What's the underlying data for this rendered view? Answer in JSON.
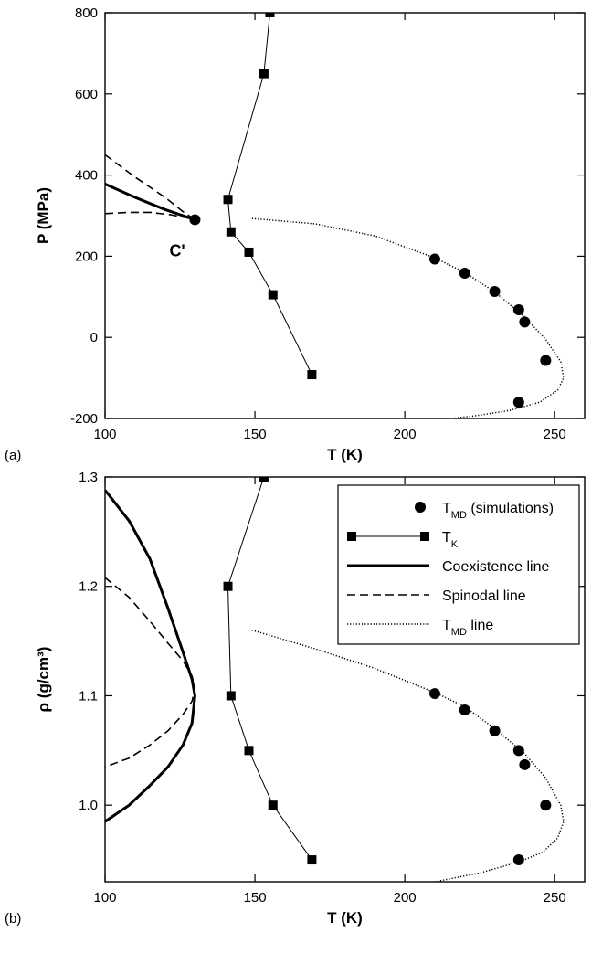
{
  "chart_data": [
    {
      "type": "line",
      "panel_label": "(a)",
      "xlabel": "T (K)",
      "ylabel": "P (MPa)",
      "xlim": [
        100,
        260
      ],
      "ylim": [
        -200,
        800
      ],
      "xticks": [
        100,
        150,
        200,
        250
      ],
      "yticks": [
        -200,
        0,
        200,
        400,
        600,
        800
      ],
      "annotation": {
        "text": "C'",
        "x": 130,
        "y": 290
      },
      "series": [
        {
          "name": "TK",
          "style": "line-square",
          "points": [
            [
              155,
              800
            ],
            [
              153,
              650
            ],
            [
              141,
              340
            ],
            [
              142,
              260
            ],
            [
              148,
              210
            ],
            [
              156,
              105
            ],
            [
              169,
              -92
            ]
          ]
        },
        {
          "name": "TMD (simulations)",
          "style": "marker-circle",
          "points": [
            [
              130,
              290
            ],
            [
              210,
              193
            ],
            [
              220,
              158
            ],
            [
              230,
              113
            ],
            [
              238,
              68
            ],
            [
              240,
              38
            ],
            [
              247,
              -57
            ],
            [
              238,
              -160
            ]
          ]
        },
        {
          "name": "Coexistence line",
          "style": "solid-thick",
          "points": [
            [
              100,
              378
            ],
            [
              110,
              345
            ],
            [
              120,
              315
            ],
            [
              126,
              300
            ],
            [
              130,
              290
            ]
          ]
        },
        {
          "name": "Spinodal line",
          "style": "dashed",
          "points": [
            [
              100,
              450
            ],
            [
              110,
              395
            ],
            [
              120,
              345
            ],
            [
              126,
              310
            ],
            [
              130,
              290
            ]
          ]
        },
        {
          "name": "Spinodal line (lower branch)",
          "style": "dashed",
          "points": [
            [
              100,
              305
            ],
            [
              108,
              308
            ],
            [
              115,
              308
            ],
            [
              122,
              302
            ],
            [
              127,
              295
            ],
            [
              130,
              290
            ]
          ]
        },
        {
          "name": "TMD line",
          "style": "dotted",
          "points": [
            [
              149,
              293
            ],
            [
              170,
              280
            ],
            [
              190,
              250
            ],
            [
              210,
              196
            ],
            [
              220,
              160
            ],
            [
              230,
              112
            ],
            [
              240,
              50
            ],
            [
              247,
              -5
            ],
            [
              252,
              -60
            ],
            [
              253,
              -100
            ],
            [
              251,
              -130
            ],
            [
              245,
              -160
            ],
            [
              235,
              -180
            ],
            [
              225,
              -192
            ],
            [
              210,
              -205
            ]
          ]
        }
      ]
    },
    {
      "type": "line",
      "panel_label": "(b)",
      "xlabel": "T (K)",
      "ylabel": "ρ (g/cm³)",
      "xlim": [
        100,
        260
      ],
      "ylim": [
        0.93,
        1.3
      ],
      "xticks": [
        100,
        150,
        200,
        250
      ],
      "yticks": [
        1.0,
        1.1,
        1.2,
        1.3
      ],
      "legend": {
        "placement": "top-right",
        "entries": [
          {
            "label": "TMD (simulations)",
            "style": "marker-circle"
          },
          {
            "label": "TK",
            "style": "line-square"
          },
          {
            "label": "Coexistence line",
            "style": "solid-thick"
          },
          {
            "label": "Spinodal line",
            "style": "dashed"
          },
          {
            "label": "TMD line",
            "style": "dotted"
          }
        ]
      },
      "series": [
        {
          "name": "TK",
          "style": "line-square",
          "points": [
            [
              153,
              1.3
            ],
            [
              141,
              1.2
            ],
            [
              142,
              1.1
            ],
            [
              148,
              1.05
            ],
            [
              156,
              1.0
            ],
            [
              169,
              0.95
            ]
          ]
        },
        {
          "name": "TMD (simulations)",
          "style": "marker-circle",
          "points": [
            [
              210,
              1.102
            ],
            [
              220,
              1.087
            ],
            [
              230,
              1.068
            ],
            [
              238,
              1.05
            ],
            [
              240,
              1.037
            ],
            [
              247,
              1.0
            ],
            [
              238,
              0.95
            ]
          ]
        },
        {
          "name": "Coexistence line",
          "style": "solid-thick",
          "points": [
            [
              100,
              1.288
            ],
            [
              108,
              1.26
            ],
            [
              115,
              1.225
            ],
            [
              121,
              1.18
            ],
            [
              126,
              1.14
            ],
            [
              129,
              1.115
            ],
            [
              130,
              1.1
            ],
            [
              129,
              1.075
            ],
            [
              126,
              1.055
            ],
            [
              121,
              1.035
            ],
            [
              115,
              1.018
            ],
            [
              108,
              1.0
            ],
            [
              100,
              0.985
            ]
          ]
        },
        {
          "name": "Spinodal line",
          "style": "dashed",
          "points": [
            [
              100,
              1.208
            ],
            [
              108,
              1.19
            ],
            [
              115,
              1.168
            ],
            [
              121,
              1.148
            ],
            [
              126,
              1.132
            ],
            [
              129,
              1.118
            ],
            [
              130,
              1.107
            ],
            [
              129,
              1.095
            ],
            [
              126,
              1.083
            ],
            [
              121,
              1.068
            ],
            [
              115,
              1.055
            ],
            [
              108,
              1.043
            ],
            [
              100,
              1.035
            ]
          ]
        },
        {
          "name": "TMD line",
          "style": "dotted",
          "points": [
            [
              149,
              1.16
            ],
            [
              170,
              1.143
            ],
            [
              190,
              1.125
            ],
            [
              210,
              1.103
            ],
            [
              220,
              1.09
            ],
            [
              230,
              1.07
            ],
            [
              240,
              1.047
            ],
            [
              247,
              1.025
            ],
            [
              252,
              1.0
            ],
            [
              253,
              0.985
            ],
            [
              251,
              0.97
            ],
            [
              246,
              0.957
            ],
            [
              238,
              0.948
            ],
            [
              225,
              0.938
            ],
            [
              210,
              0.93
            ]
          ]
        }
      ]
    }
  ]
}
